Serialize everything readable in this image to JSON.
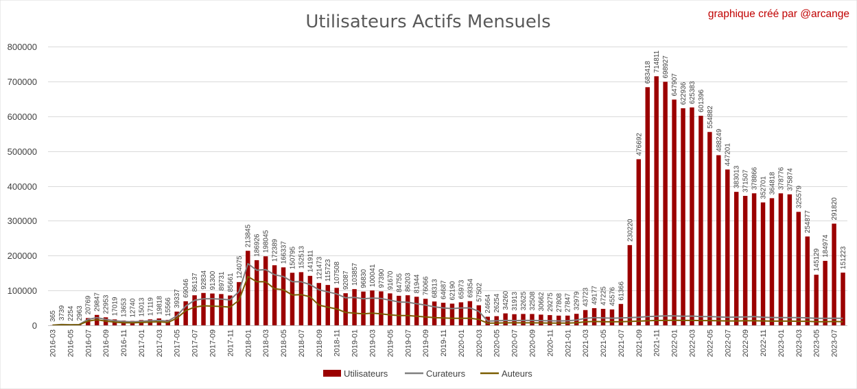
{
  "chart_data": {
    "type": "bar",
    "title": "Utilisateurs Actifs Mensuels",
    "credit": "graphique créé par  @arcange",
    "ylim": [
      0,
      800000
    ],
    "yticks": [
      0,
      100000,
      200000,
      300000,
      400000,
      500000,
      600000,
      700000,
      800000
    ],
    "grid": true,
    "legend_position": "bottom",
    "x": [
      "2016-03",
      "2016-04",
      "2016-05",
      "2016-06",
      "2016-07",
      "2016-08",
      "2016-09",
      "2016-10",
      "2016-11",
      "2016-12",
      "2017-01",
      "2017-02",
      "2017-03",
      "2017-04",
      "2017-05",
      "2017-06",
      "2017-07",
      "2017-08",
      "2017-09",
      "2017-10",
      "2017-11",
      "2017-12",
      "2018-01",
      "2018-02",
      "2018-03",
      "2018-04",
      "2018-05",
      "2018-06",
      "2018-07",
      "2018-08",
      "2018-09",
      "2018-10",
      "2018-11",
      "2018-12",
      "2019-01",
      "2019-02",
      "2019-03",
      "2019-04",
      "2019-05",
      "2019-06",
      "2019-07",
      "2019-08",
      "2019-09",
      "2019-10",
      "2019-11",
      "2019-12",
      "2020-01",
      "2020-02",
      "2020-03",
      "2020-04",
      "2020-05",
      "2020-06",
      "2020-07",
      "2020-08",
      "2020-09",
      "2020-10",
      "2020-11",
      "2020-12",
      "2021-01",
      "2021-02",
      "2021-03",
      "2021-04",
      "2021-05",
      "2021-06",
      "2021-07",
      "2021-08",
      "2021-09",
      "2021-10",
      "2021-11",
      "2021-12",
      "2022-01",
      "2022-02",
      "2022-03",
      "2022-04",
      "2022-05",
      "2022-06",
      "2022-07",
      "2022-08",
      "2022-09",
      "2022-10",
      "2022-11",
      "2022-12",
      "2023-01",
      "2023-02",
      "2023-03",
      "2023-04",
      "2023-05",
      "2023-06",
      "2023-07",
      "2023-08"
    ],
    "x_tick_labels": [
      "2016-03",
      "2016-05",
      "2016-07",
      "2016-09",
      "2016-11",
      "2017-01",
      "2017-03",
      "2017-05",
      "2017-07",
      "2017-09",
      "2017-11",
      "2018-01",
      "2018-03",
      "2018-05",
      "2018-07",
      "2018-09",
      "2018-11",
      "2019-01",
      "2019-03",
      "2019-05",
      "2019-07",
      "2019-09",
      "2019-11",
      "2020-01",
      "2020-03",
      "2020-05",
      "2020-07",
      "2020-09",
      "2020-11",
      "2021-01",
      "2021-03",
      "2021-05",
      "2021-07",
      "2021-09",
      "2021-11",
      "2022-01",
      "2022-03",
      "2022-05",
      "2022-07",
      "2022-09",
      "2022-11",
      "2023-01",
      "2023-03",
      "2023-05",
      "2023-07"
    ],
    "series": [
      {
        "name": "Utilisateurs",
        "type": "bar",
        "color": "#9b0000",
        "values": [
          365,
          3739,
          2254,
          2963,
          20769,
          29847,
          22953,
          17019,
          13653,
          12740,
          15013,
          17119,
          19818,
          15566,
          39337,
          69046,
          86137,
          92834,
          91300,
          89731,
          85661,
          124075,
          213845,
          186926,
          198045,
          172389,
          166337,
          150795,
          152513,
          141911,
          121473,
          115723,
          107508,
          92087,
          103857,
          96830,
          100041,
          97390,
          91670,
          84755,
          86203,
          81944,
          76066,
          68313,
          64687,
          62190,
          65973,
          69354,
          57502,
          24664,
          26254,
          34260,
          31913,
          32625,
          32508,
          30662,
          29275,
          27808,
          27847,
          32979,
          43723,
          49177,
          47225,
          45576,
          61366,
          230220,
          476692,
          683418,
          714811,
          698927,
          647907,
          622936,
          625383,
          601396,
          554882,
          488249,
          447201,
          383013,
          371507,
          378866,
          352701,
          364818,
          378776,
          375874,
          325579,
          254877,
          145129,
          184974,
          291820,
          151223
        ]
      },
      {
        "name": "Curateurs",
        "type": "line",
        "color": "#7f7f7f",
        "values": [
          300,
          2500,
          1800,
          2200,
          17000,
          22000,
          17000,
          13000,
          11000,
          10000,
          11500,
          13000,
          14000,
          12000,
          27000,
          55000,
          72000,
          76000,
          76000,
          75000,
          73000,
          97000,
          177000,
          158000,
          160000,
          145000,
          140000,
          125000,
          125000,
          117000,
          102000,
          96000,
          90000,
          79000,
          80000,
          76000,
          78000,
          77000,
          72000,
          67000,
          66000,
          62000,
          58000,
          53000,
          50000,
          48000,
          50000,
          50000,
          40000,
          12000,
          13000,
          14000,
          13500,
          14000,
          14000,
          13500,
          13000,
          12500,
          13000,
          15000,
          20000,
          22000,
          21000,
          20500,
          21000,
          22000,
          23000,
          25000,
          26000,
          27000,
          27000,
          26000,
          26500,
          25000,
          25000,
          24000,
          23000,
          23500,
          24000,
          25000,
          23000,
          22500,
          22000,
          22000,
          22000,
          21500,
          20000,
          20000,
          20500,
          20000
        ]
      },
      {
        "name": "Auteurs",
        "type": "line",
        "color": "#7a5c00",
        "values": [
          200,
          1500,
          1200,
          1500,
          12000,
          16000,
          12000,
          9000,
          7500,
          7000,
          8000,
          9000,
          10000,
          8000,
          20000,
          42000,
          52000,
          56000,
          55000,
          54000,
          52000,
          72000,
          140000,
          125000,
          125000,
          105000,
          102000,
          87000,
          88000,
          82000,
          58000,
          52000,
          47000,
          37000,
          35000,
          33000,
          35000,
          33000,
          30000,
          28000,
          28000,
          26000,
          24000,
          22000,
          21000,
          20000,
          20000,
          20500,
          17000,
          6000,
          6500,
          7000,
          7000,
          7000,
          7000,
          6800,
          6500,
          6300,
          6500,
          7500,
          10000,
          11000,
          10500,
          10000,
          10500,
          11000,
          12000,
          13000,
          14000,
          14000,
          14500,
          14000,
          14000,
          13500,
          13500,
          13000,
          12500,
          12500,
          13000,
          13000,
          12500,
          12000,
          12000,
          12000,
          11500,
          11500,
          10500,
          10500,
          11000,
          10500
        ]
      }
    ]
  }
}
